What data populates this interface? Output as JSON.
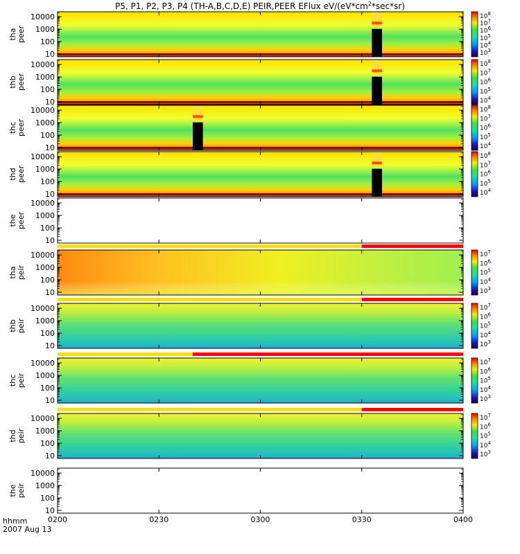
{
  "chart_data": {
    "type": "heatmap",
    "title": "P5, P1, P2, P3, P4 (TH-A,B,C,D,E) PEIR,PEER EFlux eV/(eV*cm",
    "title_sup": "2",
    "title_tail": "*sec*sr)",
    "x_ticks": [
      "0200",
      "0230",
      "0300",
      "0330",
      "0400"
    ],
    "x_range": [
      "02:00",
      "04:00"
    ],
    "x_caption_1": "hhmm",
    "x_caption_2": "2007 Aug 13",
    "y_ticks": [
      "10",
      "100",
      "1000",
      "10000"
    ],
    "y_scale": "log",
    "panels": [
      {
        "probe": "tha",
        "species": "peer",
        "has_data": true,
        "colorbar": [
          "10^3",
          "10^4",
          "10^5",
          "10^6",
          "10^7",
          "10^8"
        ],
        "gaps_hhmm": [
          "0333-0336"
        ],
        "mode_bar": null
      },
      {
        "probe": "thb",
        "species": "peer",
        "has_data": true,
        "colorbar": [
          "10^4",
          "10^5",
          "10^6",
          "10^7",
          "10^8"
        ],
        "gaps_hhmm": [
          "0333-0336"
        ],
        "mode_bar": null
      },
      {
        "probe": "thc",
        "species": "peer",
        "has_data": true,
        "colorbar": [
          "10^4",
          "10^5",
          "10^6",
          "10^7",
          "10^8"
        ],
        "gaps_hhmm": [
          "0240-0243"
        ],
        "mode_bar": null
      },
      {
        "probe": "thd",
        "species": "peer",
        "has_data": true,
        "colorbar": [
          "10^4",
          "10^5",
          "10^6",
          "10^7",
          "10^8"
        ],
        "gaps_hhmm": [
          "0333-0336"
        ],
        "mode_bar": null
      },
      {
        "probe": "the",
        "species": "peer",
        "has_data": false,
        "colorbar": [],
        "gaps_hhmm": [],
        "mode_bar": null
      },
      {
        "probe": "tha",
        "species": "peir",
        "has_data": true,
        "colorbar": [
          "10^3",
          "10^4",
          "10^5",
          "10^6",
          "10^7"
        ],
        "gaps_hhmm": [],
        "mode_bar": {
          "yellow_until": "0330",
          "red_from": "0330"
        }
      },
      {
        "probe": "thb",
        "species": "peir",
        "has_data": true,
        "colorbar": [
          "10^3",
          "10^4",
          "10^5",
          "10^6",
          "10^7"
        ],
        "gaps_hhmm": [],
        "mode_bar": {
          "yellow_until": "0330",
          "red_from": "0330"
        }
      },
      {
        "probe": "thc",
        "species": "peir",
        "has_data": true,
        "colorbar": [
          "10^3",
          "10^4",
          "10^5",
          "10^6",
          "10^7"
        ],
        "gaps_hhmm": [],
        "mode_bar": {
          "yellow_until": "0240",
          "red_from": "0240"
        }
      },
      {
        "probe": "thd",
        "species": "peir",
        "has_data": true,
        "colorbar": [
          "10^3",
          "10^4",
          "10^5",
          "10^6",
          "10^7"
        ],
        "gaps_hhmm": [],
        "mode_bar": {
          "yellow_until": "0330",
          "red_from": "0330"
        }
      },
      {
        "probe": "the",
        "species": "peir",
        "has_data": false,
        "colorbar": [],
        "gaps_hhmm": [],
        "mode_bar": null
      }
    ]
  },
  "colors": {
    "yellow": "#ffe000",
    "orange": "#ff8800",
    "green": "#40e040",
    "red": "#ff0000",
    "black": "#000000"
  }
}
